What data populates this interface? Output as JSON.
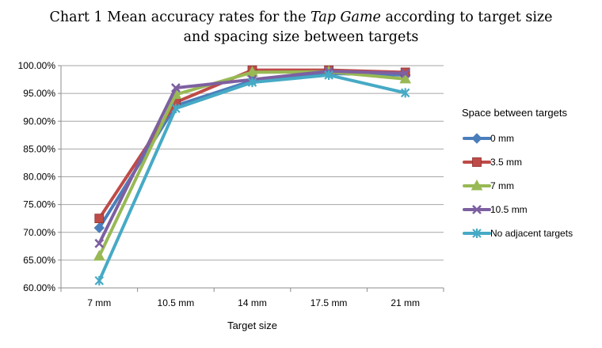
{
  "chart_data": {
    "type": "line",
    "title": {
      "line1_before": "Chart 1 Mean accuracy rates for the ",
      "line1_italic": "Tap Game",
      "line1_after": " according to target size",
      "line2": "and spacing size between targets"
    },
    "xlabel": "Target size",
    "ylabel": "",
    "categories": [
      "7 mm",
      "10.5 mm",
      "14 mm",
      "17.5 mm",
      "21 mm"
    ],
    "y_ticks": [
      "60.00%",
      "65.00%",
      "70.00%",
      "75.00%",
      "80.00%",
      "85.00%",
      "90.00%",
      "95.00%",
      "100.00%"
    ],
    "ylim": [
      60,
      100
    ],
    "grid": true,
    "legend": {
      "title": "Space between targets",
      "placement": "right"
    },
    "series": [
      {
        "name": "0 mm",
        "color": "#4a7ebb",
        "marker": "diamond",
        "values": [
          70.8,
          92.8,
          97.3,
          98.6,
          98.3
        ]
      },
      {
        "name": "3.5 mm",
        "color": "#be4b48",
        "marker": "square",
        "values": [
          72.5,
          93.4,
          99.2,
          99.2,
          98.8
        ]
      },
      {
        "name": "7 mm",
        "color": "#98b954",
        "marker": "triangle",
        "values": [
          65.7,
          94.8,
          98.8,
          98.9,
          97.6
        ]
      },
      {
        "name": "10.5 mm",
        "color": "#7d60a0",
        "marker": "x",
        "values": [
          68.0,
          96.0,
          97.5,
          99.0,
          98.6
        ]
      },
      {
        "name": "No adjacent targets",
        "color": "#46aac5",
        "marker": "star",
        "values": [
          61.3,
          92.3,
          97.0,
          98.3,
          95.1
        ]
      }
    ]
  }
}
